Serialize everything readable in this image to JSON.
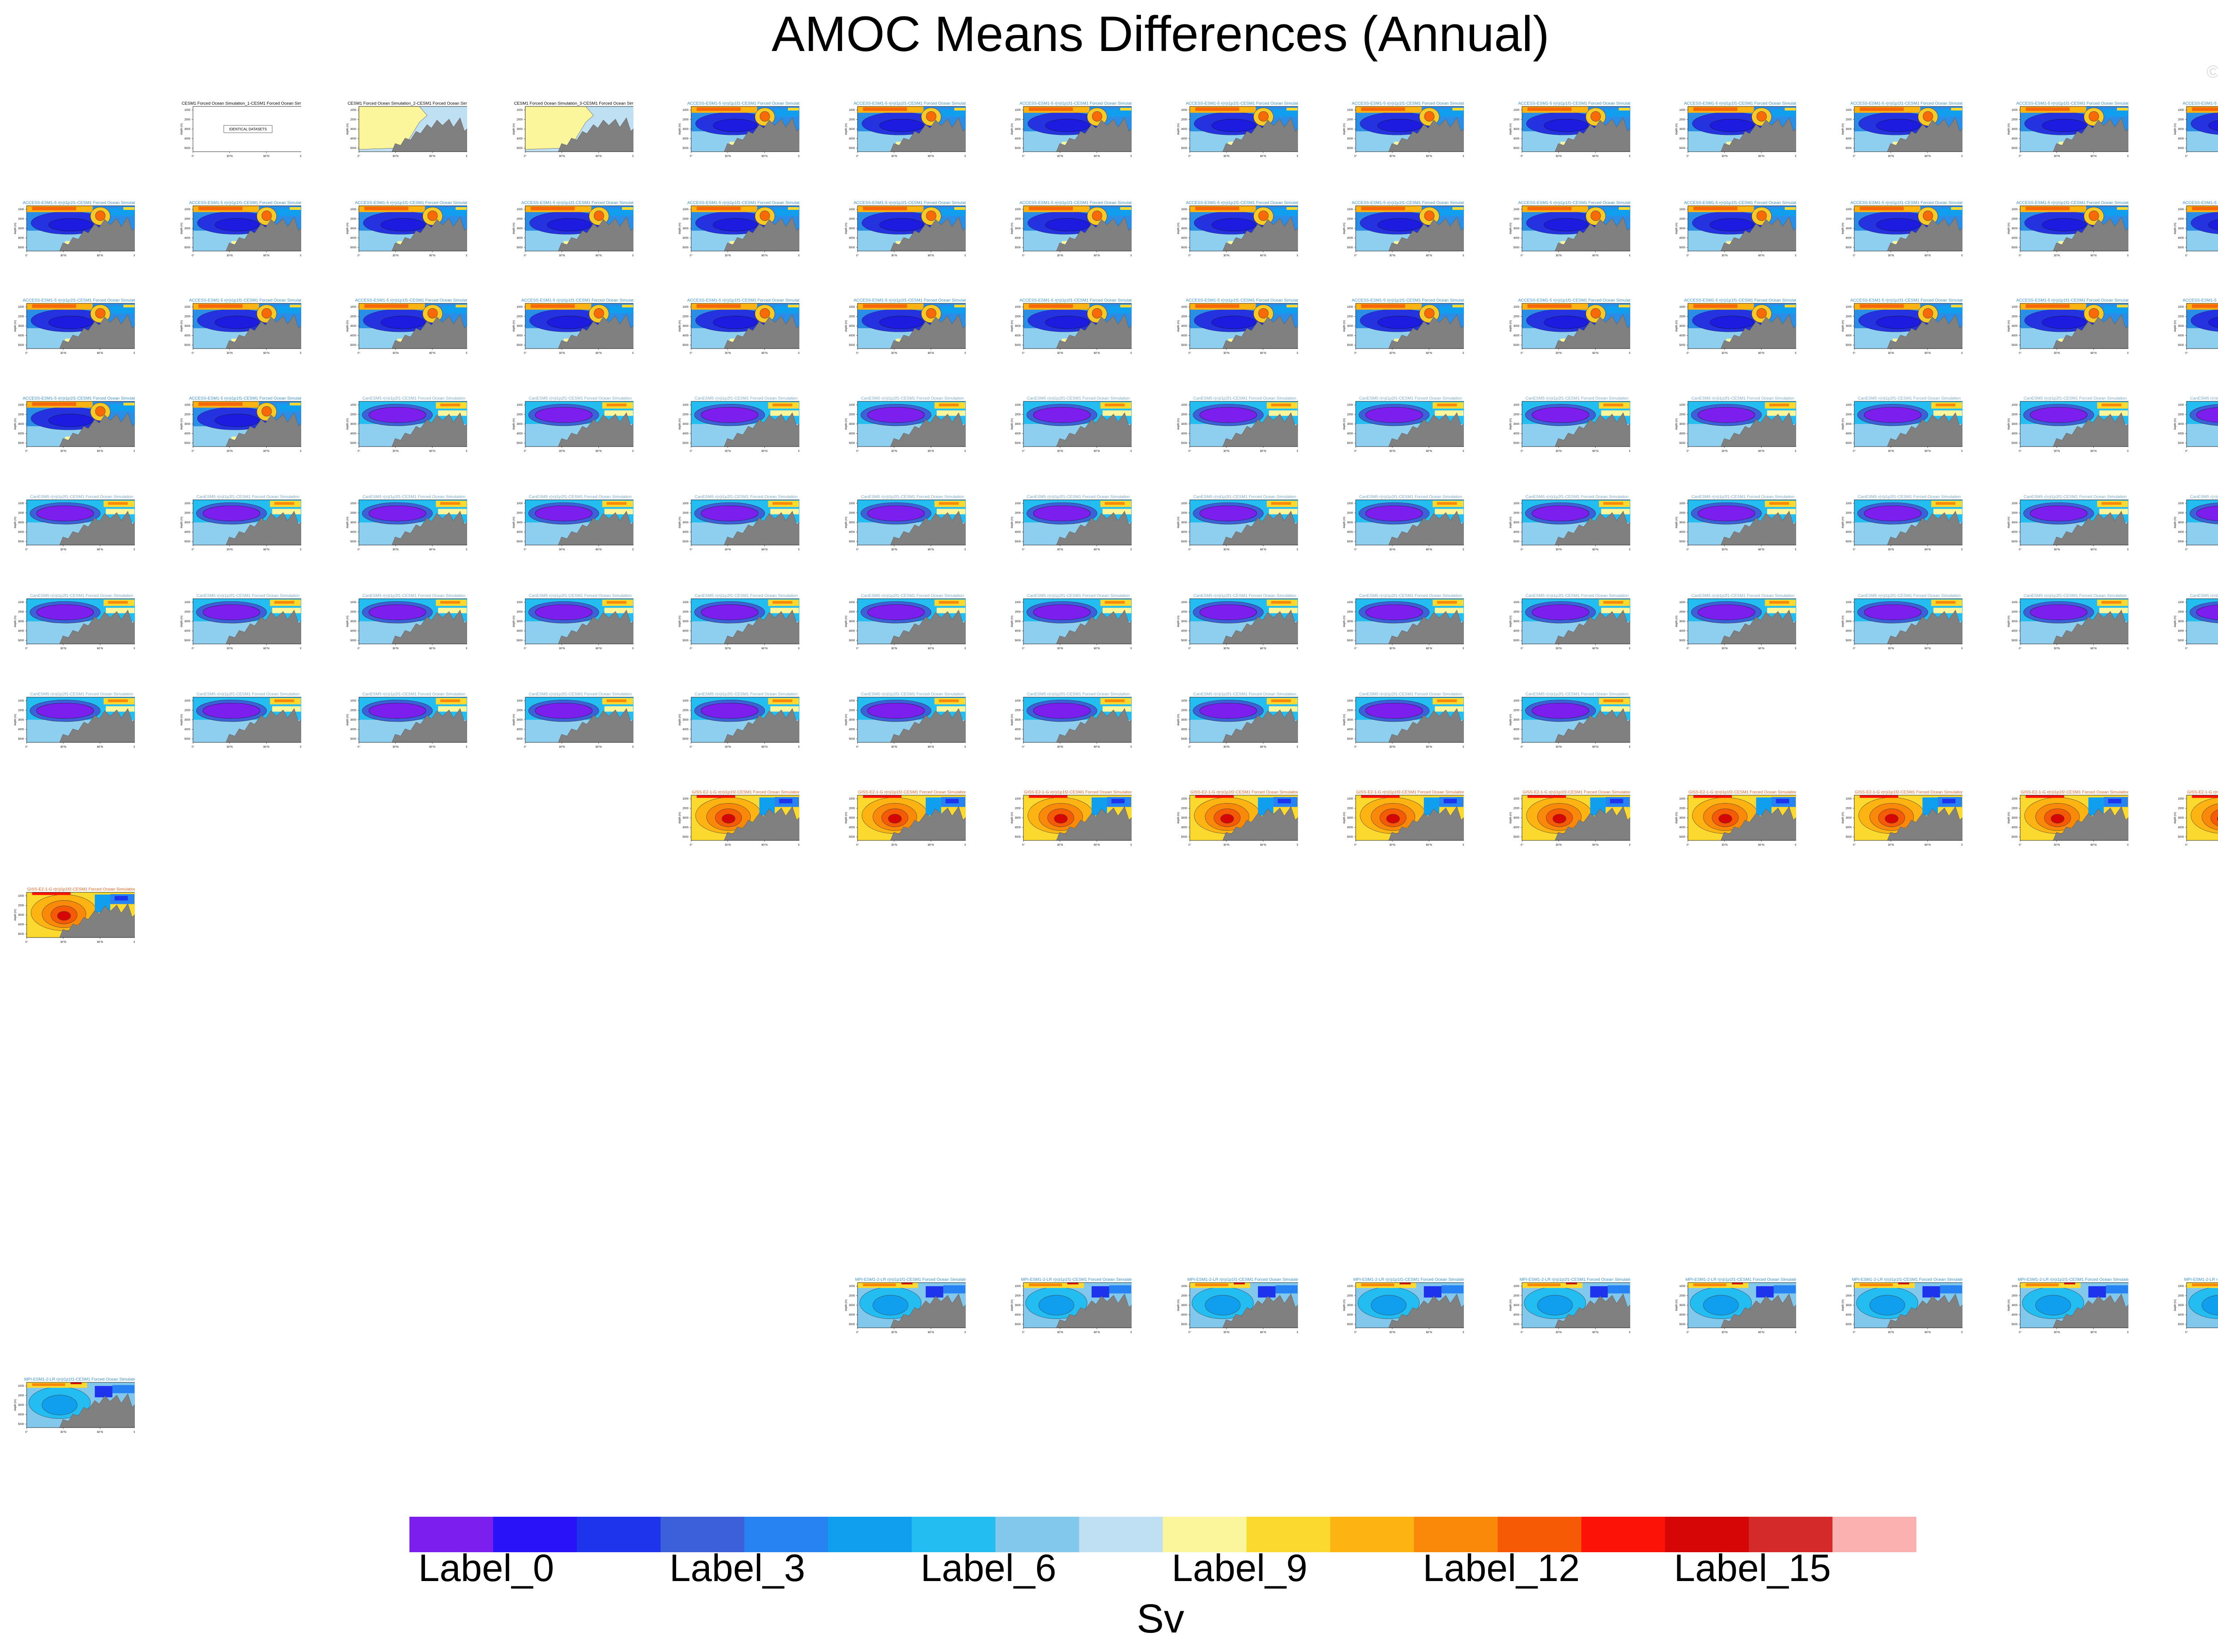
{
  "title": "AMOC Means Differences (Annual)",
  "watermark": "© CVDP-LE",
  "colorbar": {
    "title": "Sv",
    "colors": [
      "#7c1fee",
      "#2a12f8",
      "#1e33ec",
      "#3c60da",
      "#2783f2",
      "#109eef",
      "#24bdf2",
      "#82c7ec",
      "#bfe0f2",
      "#fbf59b",
      "#fbd92e",
      "#fdb312",
      "#fa890a",
      "#f75a05",
      "#fc1206",
      "#d60606",
      "#d42a2a",
      "#fcb1b1"
    ],
    "labels": [
      "Label_0",
      "Label_3",
      "Label_6",
      "Label_9",
      "Label_12",
      "Label_15"
    ],
    "label_box_index": [
      0,
      3,
      6,
      9,
      12,
      15
    ]
  },
  "panel_titles": {
    "obs": [
      "CESM1 Forced Ocean Simulation_1-CESM1 Forced Ocean Simulation",
      "CESM1 Forced Ocean Simulation_2-CESM1 Forced Ocean Simulation",
      "CESM1 Forced Ocean Simulation_3-CESM1 Forced Ocean Simulation"
    ],
    "obs_message": "IDENTICAL DATASETS",
    "access": "ACCESS-ESM1-5 r(n)i1p1f1-CESM1 Forced Ocean Simulation",
    "canesm": "CanESM5 r(n)i1p2f1-CESM1 Forced Ocean Simulation",
    "gissr": "GISS-E2-1-G r(n)i1p1f2-CESM1 Forced Ocean Simulation",
    "mpi": "MPI-ESM1-2-LR r(n)i1p1f1-CESM1 Forced Ocean Simulation"
  },
  "chart_data": {
    "type": "heatmap",
    "title": "AMOC Means Differences (Annual)",
    "colorbar_title": "Sv",
    "colorbar_labels": [
      "Label_0",
      "Label_3",
      "Label_6",
      "Label_9",
      "Label_12",
      "Label_15"
    ],
    "n_levels": 18,
    "panel_groups": [
      {
        "group": "CESM1 Forced Ocean Simulation",
        "panels": 3,
        "note": "IDENTICAL DATASETS"
      },
      {
        "group": "ACCESS-ESM1-5",
        "panels": 40,
        "pattern": "positive upper cell, negative deep"
      },
      {
        "group": "CanESM5",
        "panels": 50,
        "pattern": "strong negative cell"
      },
      {
        "group": "GISS-E2-1-G",
        "panels": 11,
        "pattern": "strong positive cell"
      },
      {
        "group": "MPI-ESM1-2-LR",
        "panels": 10,
        "pattern": "mixed positive/negative"
      }
    ]
  }
}
